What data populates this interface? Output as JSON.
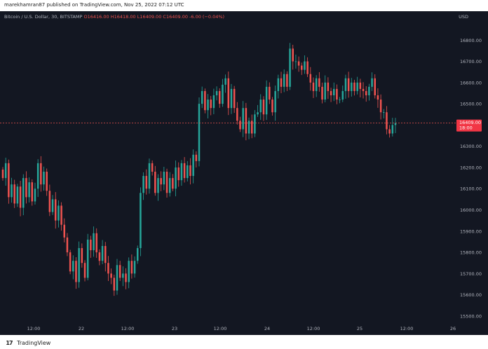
{
  "header": {
    "publisher_line": "marekhamran87 published on TradingView.com, Nov 25, 2022 07:12 UTC"
  },
  "symbol": {
    "title": "Bitcoin / U.S. Dollar, 30, BITSTAMP",
    "open": "O16416.00",
    "high": "H16418.00",
    "low": "L16409.00",
    "close": "C16409.00",
    "change": "-6.00 (−0.04%)"
  },
  "currency": "USD",
  "current_price": {
    "value": "16409.00",
    "countdown": "18:00"
  },
  "footer": {
    "logo": "17",
    "brand": "TradingView"
  },
  "colors": {
    "background": "#131722",
    "up": "#26a69a",
    "down": "#ef5350",
    "axis_text": "#b2b5be",
    "price_label": "#f23645"
  },
  "chart_data": {
    "type": "candlestick",
    "title": "Bitcoin / U.S. Dollar, 30, BITSTAMP",
    "xlabel": "",
    "ylabel": "USD",
    "ylim": [
      15470,
      16890
    ],
    "y_ticks": [
      15500,
      15600,
      15700,
      15800,
      15900,
      16000,
      16100,
      16200,
      16300,
      16500,
      16600,
      16700,
      16800
    ],
    "x_ticks": [
      "12:00",
      "22",
      "12:00",
      "23",
      "12:00",
      "24",
      "12:00",
      "25",
      "12:00",
      "26"
    ],
    "last_price": 16409,
    "grid": false,
    "closes": [
      16150,
      16220,
      16060,
      16120,
      16030,
      16110,
      16010,
      16150,
      16060,
      16130,
      16040,
      16100,
      16220,
      16120,
      16180,
      16090,
      15990,
      16050,
      15950,
      16020,
      15930,
      15870,
      15800,
      15710,
      15760,
      15660,
      15820,
      15750,
      15680,
      15860,
      15810,
      15890,
      15800,
      15760,
      15830,
      15750,
      15700,
      15680,
      15620,
      15740,
      15680,
      15700,
      15660,
      15760,
      15700,
      15760,
      15820,
      16080,
      16160,
      16100,
      16220,
      16180,
      16080,
      16150,
      16120,
      16180,
      16080,
      16150,
      16100,
      16200,
      16140,
      16220,
      16150,
      16210,
      16160,
      16260,
      16230,
      16500,
      16560,
      16470,
      16520,
      16480,
      16540,
      16560,
      16500,
      16590,
      16620,
      16480,
      16570,
      16480,
      16420,
      16380,
      16480,
      16360,
      16420,
      16360,
      16450,
      16460,
      16520,
      16450,
      16580,
      16520,
      16460,
      16560,
      16620,
      16580,
      16640,
      16580,
      16760,
      16700,
      16700,
      16680,
      16660,
      16700,
      16640,
      16600,
      16560,
      16620,
      16580,
      16520,
      16600,
      16560,
      16540,
      16570,
      16520,
      16520,
      16560,
      16620,
      16560,
      16600,
      16560,
      16600,
      16570,
      16560,
      16540,
      16580,
      16620,
      16540,
      16520,
      16460,
      16460,
      16380,
      16360,
      16400,
      16409
    ]
  }
}
